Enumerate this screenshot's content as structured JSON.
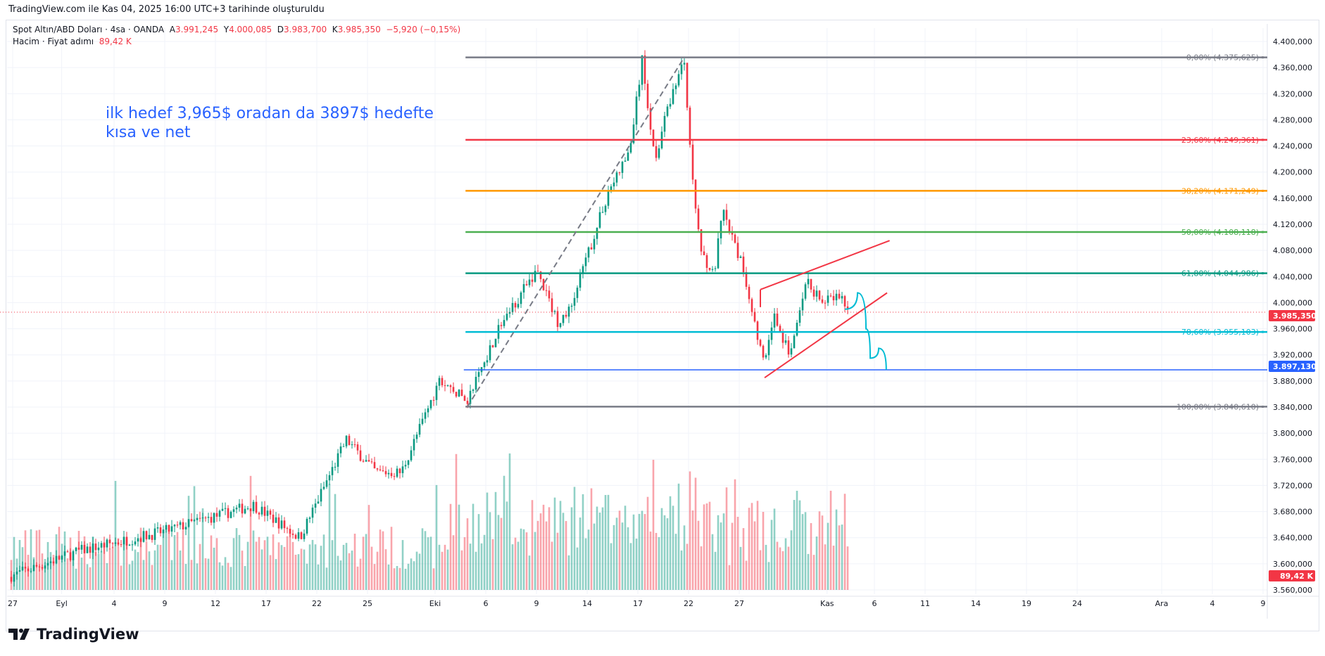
{
  "credit": "TradingView.com ile Kas 04, 2025 16:00 UTC+3 tarihinde oluşturuldu",
  "legend": {
    "symbol": "Spot Altın/ABD Doları · 4sa · OANDA",
    "o_label": "A",
    "o": "3.991,245",
    "h_label": "Y",
    "h": "4.000,085",
    "l_label": "D",
    "l": "3.983,700",
    "c_label": "K",
    "c": "3.985,350",
    "change": "−5,920 (−0,15%)",
    "volume_label": "Hacim · Fiyat adımı",
    "volume": "89,42 K"
  },
  "annotation": {
    "line1": "ilk hedef 3,965$ oradan da 3897$ hedefte",
    "line2": "kısa ve net"
  },
  "logo": "TradingView",
  "colors": {
    "up": "#089981",
    "down": "#f23645",
    "accent": "#2962ff"
  },
  "chart_data": {
    "type": "candlestick",
    "price_axis": {
      "min": 3560,
      "max": 4400,
      "step": 40,
      "labels": [
        "4.400,000",
        "4.360,000",
        "4.320,000",
        "4.280,000",
        "4.240,000",
        "4.200,000",
        "4.160,000",
        "4.120,000",
        "4.080,000",
        "4.040,000",
        "4.000,000",
        "3.960,000",
        "3.920,000",
        "3.880,000",
        "3.840,000",
        "3.800,000",
        "3.760,000",
        "3.720,000",
        "3.680,000",
        "3.640,000",
        "3.600,000",
        "3.560,000"
      ]
    },
    "time_axis": [
      {
        "label": "27",
        "day": 0
      },
      {
        "label": "Eyl",
        "day": 2.9
      },
      {
        "label": "4",
        "day": 6
      },
      {
        "label": "9",
        "day": 9
      },
      {
        "label": "12",
        "day": 12
      },
      {
        "label": "17",
        "day": 15
      },
      {
        "label": "22",
        "day": 18
      },
      {
        "label": "25",
        "day": 21
      },
      {
        "label": "Eki",
        "day": 25
      },
      {
        "label": "6",
        "day": 28
      },
      {
        "label": "9",
        "day": 31
      },
      {
        "label": "14",
        "day": 34
      },
      {
        "label": "17",
        "day": 37
      },
      {
        "label": "22",
        "day": 40
      },
      {
        "label": "27",
        "day": 43
      },
      {
        "label": "Kas",
        "day": 48.2
      },
      {
        "label": "6",
        "day": 51
      },
      {
        "label": "11",
        "day": 54
      },
      {
        "label": "14",
        "day": 57
      },
      {
        "label": "19",
        "day": 60
      },
      {
        "label": "24",
        "day": 63
      },
      {
        "label": "Ara",
        "day": 68
      },
      {
        "label": "4",
        "day": 71
      },
      {
        "label": "9",
        "day": 74
      }
    ],
    "price_path": [
      [
        -0.25,
        3580
      ],
      [
        4,
        3620
      ],
      [
        9,
        3650
      ],
      [
        14.25,
        3690
      ],
      [
        17,
        3640
      ],
      [
        19.75,
        3790
      ],
      [
        21.5,
        3740
      ],
      [
        23,
        3740
      ],
      [
        25.25,
        3880
      ],
      [
        26.9,
        3850
      ],
      [
        28.75,
        3960
      ],
      [
        31,
        4050
      ],
      [
        32.25,
        3970
      ],
      [
        33,
        3990
      ],
      [
        34.25,
        4090
      ],
      [
        35.25,
        4170
      ],
      [
        36.5,
        4230
      ],
      [
        37.25,
        4370
      ],
      [
        38,
        4220
      ],
      [
        39,
        4320
      ],
      [
        39.75,
        4370
      ],
      [
        40.25,
        4180
      ],
      [
        40.75,
        4080
      ],
      [
        41.5,
        4040
      ],
      [
        42,
        4140
      ],
      [
        43.25,
        4050
      ],
      [
        44.5,
        3900
      ],
      [
        45,
        3980
      ],
      [
        46,
        3920
      ],
      [
        47,
        4030
      ],
      [
        48,
        4000
      ],
      [
        49,
        4010
      ],
      [
        49.5,
        3985
      ]
    ],
    "fib_levels": [
      {
        "label": "0,00% (4.375,625)",
        "price": 4375.625,
        "color": "#787b86"
      },
      {
        "label": "23,60% (4.249,361)",
        "price": 4249.361,
        "color": "#f23645"
      },
      {
        "label": "38,20% (4.171,249)",
        "price": 4171.249,
        "color": "#ff9800"
      },
      {
        "label": "50,00% (4.108,118)",
        "price": 4108.118,
        "color": "#4caf50"
      },
      {
        "label": "61,80% (4.044,986)",
        "price": 4044.986,
        "color": "#089981"
      },
      {
        "label": "78,60% (3.955,103)",
        "price": 3955.103,
        "color": "#00bcd4"
      },
      {
        "label": "100,00% (3.840,610)",
        "price": 3840.61,
        "color": "#787b86"
      }
    ],
    "horizontal_line": {
      "price": 3897.13,
      "label": "3.897,130",
      "color": "#2962ff"
    },
    "current_price": {
      "price": 3985.35,
      "label": "3.985,350",
      "color": "#f23645"
    },
    "volume_badge": {
      "label": "89,42 K",
      "color": "#f23645"
    },
    "fib_start_day": 26.8,
    "wedge": {
      "upper": [
        [
          44.25,
          4020
        ],
        [
          51.9,
          4095
        ]
      ],
      "lower": [
        [
          44.5,
          3885
        ],
        [
          51.75,
          4015
        ]
      ]
    },
    "trend_line": [
      [
        26.9,
        3840
      ],
      [
        39.75,
        4376
      ]
    ],
    "projection": [
      [
        49.25,
        3990
      ],
      [
        50,
        4015
      ],
      [
        50.5,
        3960
      ],
      [
        50.75,
        3915
      ],
      [
        51.25,
        3930
      ],
      [
        51.7,
        3897
      ]
    ]
  }
}
